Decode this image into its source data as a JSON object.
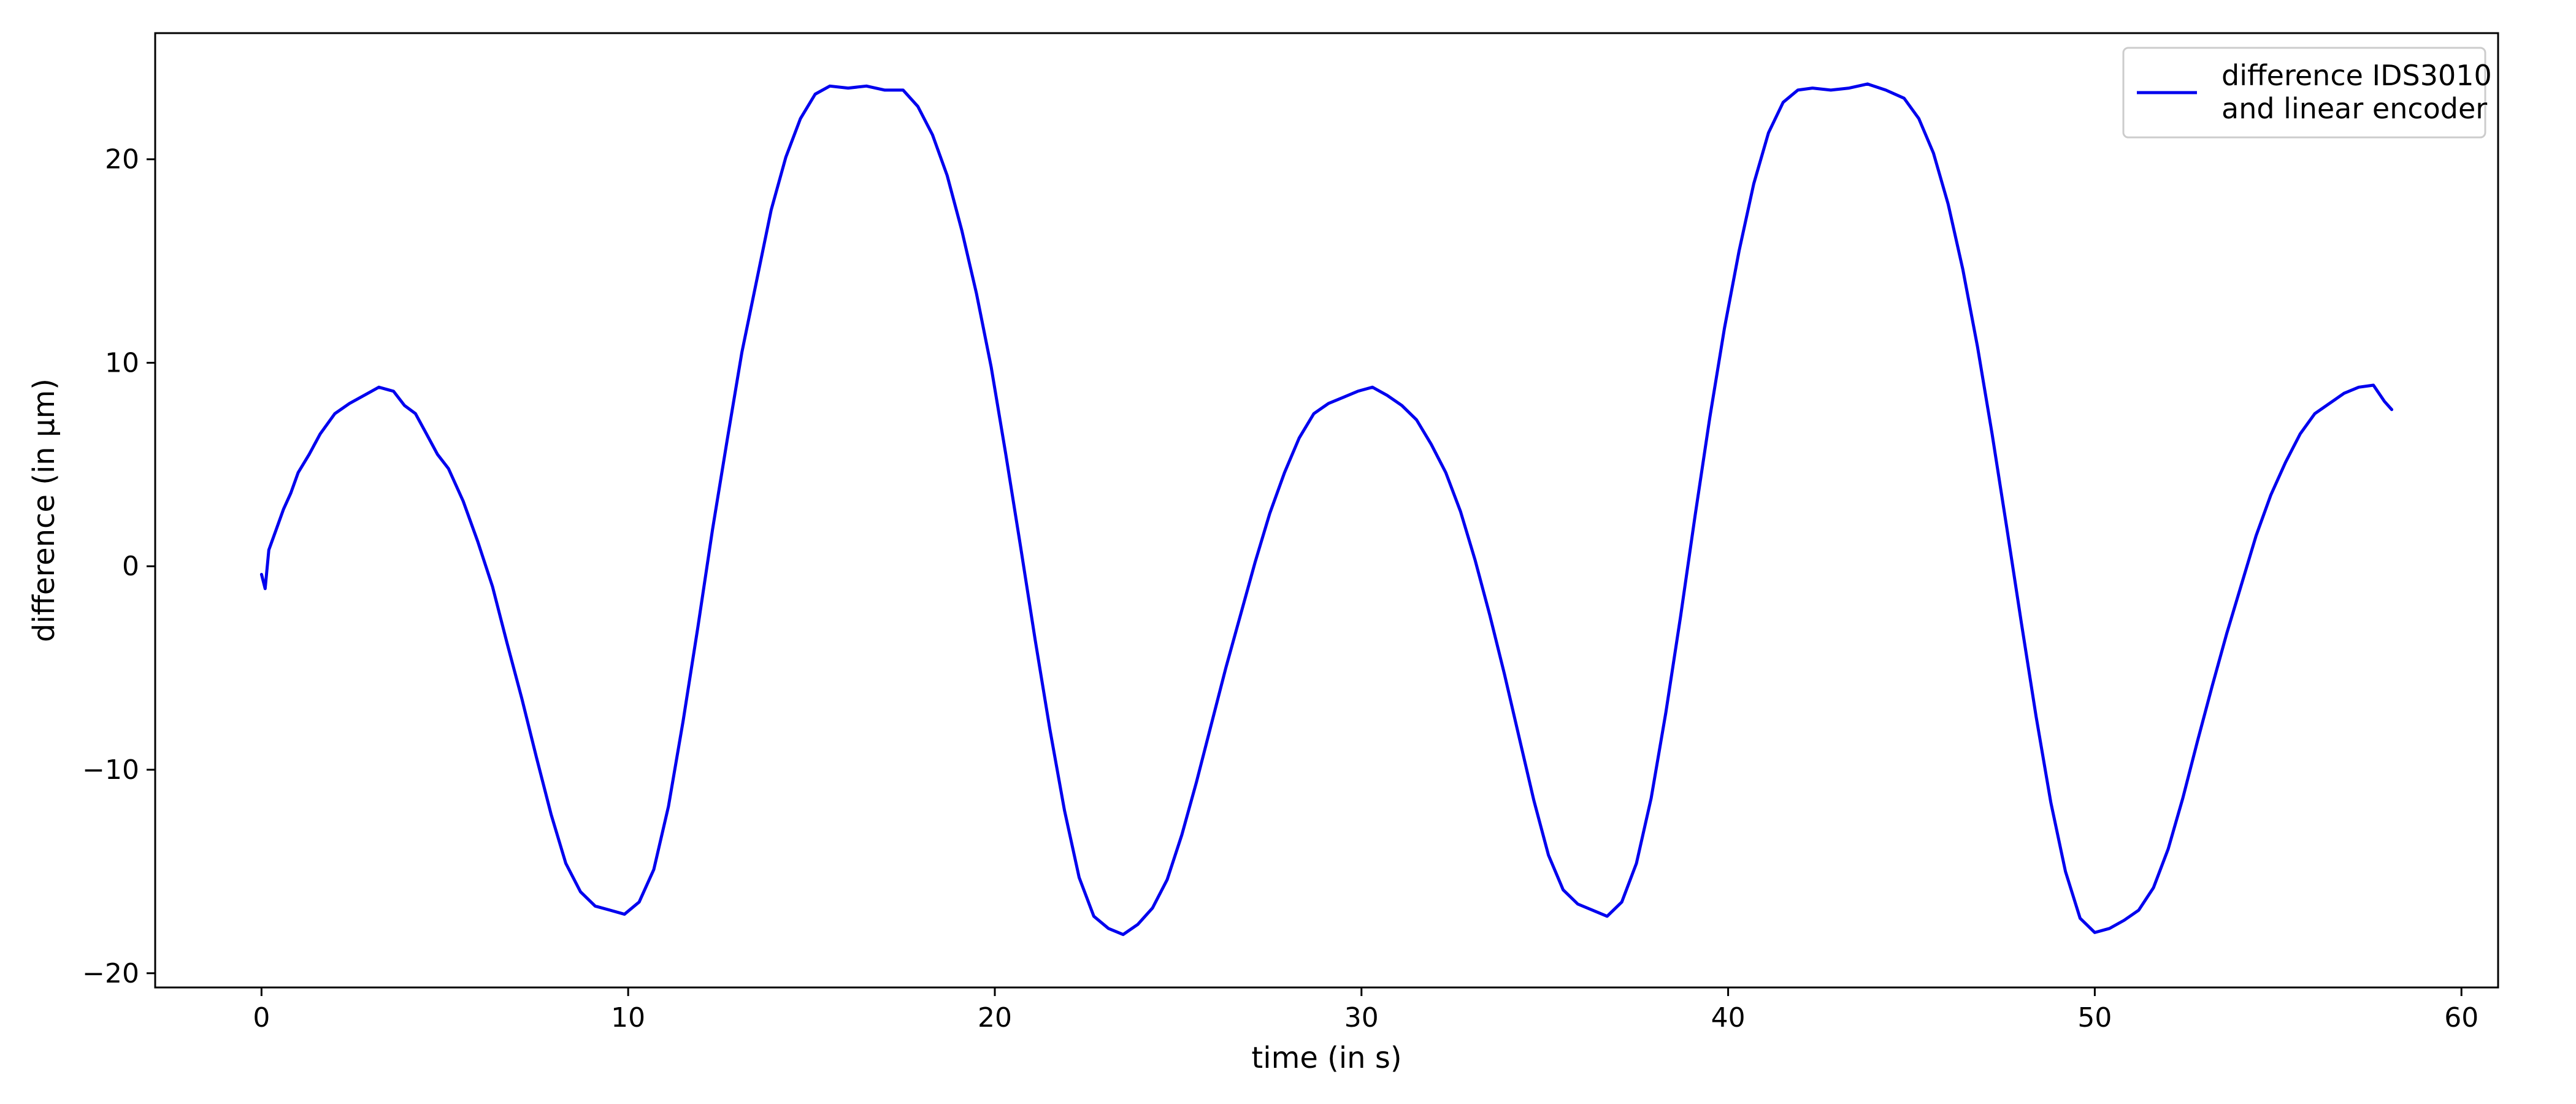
{
  "chart_data": {
    "type": "line",
    "title": "",
    "xlabel": "time (in s)",
    "ylabel": "difference (in µm)",
    "xlim": [
      -2.9,
      61.0
    ],
    "ylim": [
      -20.7,
      26.2
    ],
    "xticks": [
      0,
      10,
      20,
      30,
      40,
      50,
      60
    ],
    "xtick_labels": [
      "0",
      "10",
      "20",
      "30",
      "40",
      "50",
      "60"
    ],
    "yticks": [
      -20,
      -10,
      0,
      10,
      20
    ],
    "ytick_labels": [
      "−20",
      "−10",
      "0",
      "10",
      "20"
    ],
    "grid": false,
    "legend_position": "upper right",
    "legend_lines": [
      "difference IDS3010",
      "and linear encoder"
    ],
    "colors": {
      "line": "#0000ee",
      "axes": "#000000"
    },
    "series": [
      {
        "name": "difference IDS3010 and linear encoder",
        "x": [
          0.0,
          0.1,
          0.2,
          0.4,
          0.6,
          0.8,
          1.0,
          1.3,
          1.6,
          2.0,
          2.4,
          2.8,
          3.2,
          3.6,
          3.9,
          4.2,
          4.5,
          4.8,
          5.1,
          5.5,
          5.9,
          6.3,
          6.7,
          7.1,
          7.5,
          7.9,
          8.3,
          8.7,
          9.1,
          9.5,
          9.9,
          10.3,
          10.7,
          11.1,
          11.5,
          11.9,
          12.3,
          12.7,
          13.1,
          13.5,
          13.9,
          14.3,
          14.7,
          15.1,
          15.5,
          16.0,
          16.5,
          17.0,
          17.5,
          17.9,
          18.3,
          18.7,
          19.1,
          19.5,
          19.9,
          20.3,
          20.7,
          21.1,
          21.5,
          21.9,
          22.3,
          22.7,
          23.1,
          23.5,
          23.9,
          24.3,
          24.7,
          25.1,
          25.5,
          25.9,
          26.3,
          26.7,
          27.1,
          27.5,
          27.9,
          28.3,
          28.7,
          29.1,
          29.5,
          29.9,
          30.3,
          30.7,
          31.1,
          31.5,
          31.9,
          32.3,
          32.7,
          33.1,
          33.5,
          33.9,
          34.3,
          34.7,
          35.1,
          35.5,
          35.9,
          36.3,
          36.7,
          37.1,
          37.5,
          37.9,
          38.3,
          38.7,
          39.1,
          39.5,
          39.9,
          40.3,
          40.7,
          41.1,
          41.5,
          41.9,
          42.3,
          42.8,
          43.3,
          43.8,
          44.3,
          44.8,
          45.2,
          45.6,
          46.0,
          46.4,
          46.8,
          47.2,
          47.6,
          48.0,
          48.4,
          48.8,
          49.2,
          49.6,
          50.0,
          50.4,
          50.8,
          51.2,
          51.6,
          52.0,
          52.4,
          52.8,
          53.2,
          53.6,
          54.0,
          54.4,
          54.8,
          55.2,
          55.6,
          56.0,
          56.4,
          56.8,
          57.2,
          57.6,
          57.9,
          58.1
        ],
        "y": [
          -0.4,
          -1.1,
          0.8,
          1.8,
          2.8,
          3.6,
          4.6,
          5.5,
          6.5,
          7.5,
          8.0,
          8.4,
          8.8,
          8.6,
          7.9,
          7.5,
          6.5,
          5.5,
          4.8,
          3.2,
          1.2,
          -1.0,
          -3.8,
          -6.5,
          -9.4,
          -12.2,
          -14.6,
          -16.0,
          -16.7,
          -16.9,
          -17.1,
          -16.5,
          -14.9,
          -11.8,
          -7.6,
          -3.0,
          1.8,
          6.2,
          10.5,
          14.0,
          17.5,
          20.1,
          22.0,
          23.2,
          23.6,
          23.5,
          23.6,
          23.4,
          23.4,
          22.6,
          21.2,
          19.2,
          16.5,
          13.4,
          9.8,
          5.5,
          1.0,
          -3.6,
          -8.0,
          -12.0,
          -15.3,
          -17.2,
          -17.8,
          -18.1,
          -17.6,
          -16.8,
          -15.4,
          -13.2,
          -10.6,
          -7.8,
          -5.0,
          -2.4,
          0.2,
          2.6,
          4.6,
          6.3,
          7.5,
          8.0,
          8.3,
          8.6,
          8.8,
          8.4,
          7.9,
          7.2,
          6.0,
          4.6,
          2.7,
          0.3,
          -2.4,
          -5.3,
          -8.4,
          -11.5,
          -14.2,
          -15.9,
          -16.6,
          -16.9,
          -17.2,
          -16.5,
          -14.6,
          -11.4,
          -7.2,
          -2.5,
          2.5,
          7.3,
          11.7,
          15.5,
          18.8,
          21.3,
          22.8,
          23.4,
          23.5,
          23.4,
          23.5,
          23.7,
          23.4,
          23.0,
          22.0,
          20.3,
          17.8,
          14.6,
          10.8,
          6.5,
          1.9,
          -2.8,
          -7.4,
          -11.6,
          -15.0,
          -17.3,
          -18.0,
          -17.8,
          -17.4,
          -16.9,
          -15.8,
          -13.9,
          -11.4,
          -8.6,
          -5.9,
          -3.3,
          -0.9,
          1.5,
          3.5,
          5.1,
          6.5,
          7.5,
          8.0,
          8.5,
          8.8,
          8.9,
          8.1,
          7.7
        ]
      }
    ]
  }
}
